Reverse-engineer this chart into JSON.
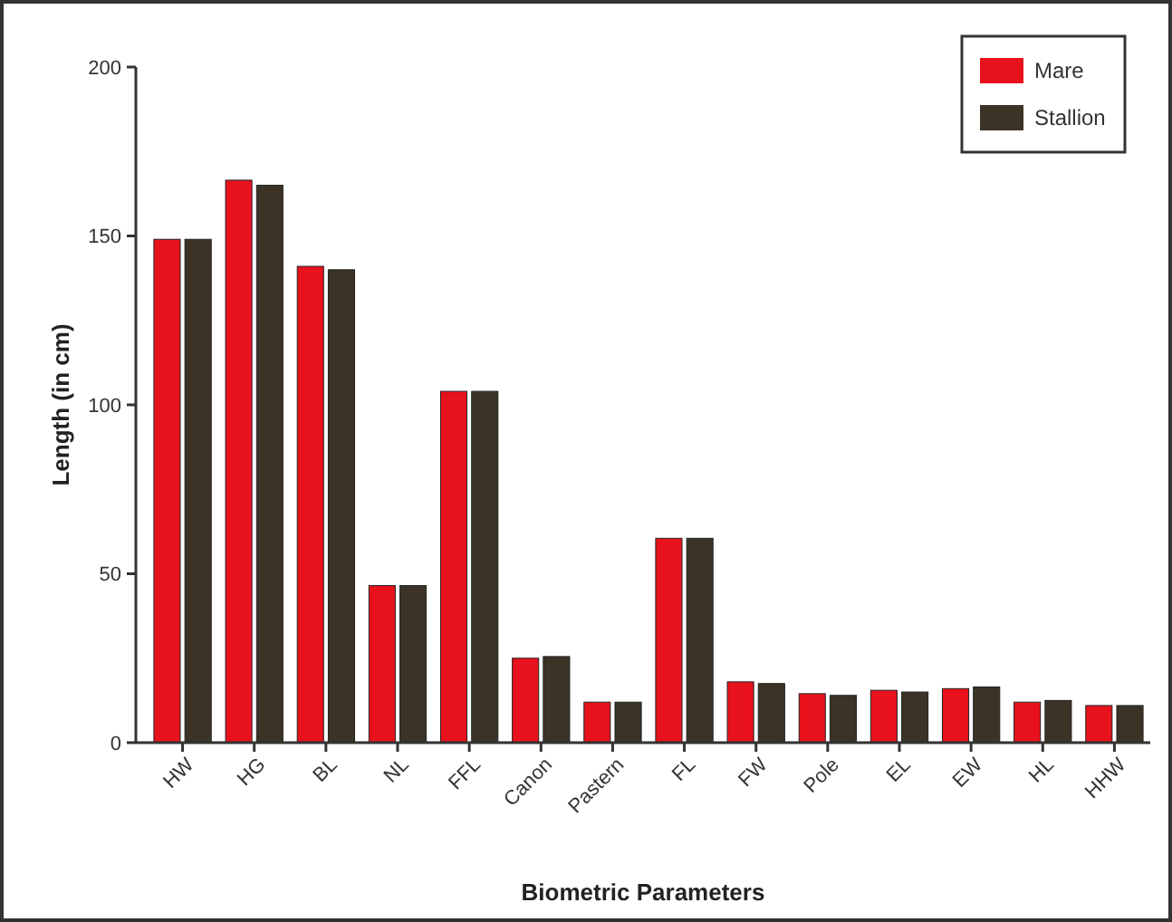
{
  "chart_data": {
    "type": "bar",
    "xlabel": "Biometric Parameters",
    "ylabel": "Length (in cm)",
    "categories": [
      "HW",
      "HG",
      "BL",
      "NL",
      "FFL",
      "Canon",
      "Pastern",
      "FL",
      "FW",
      "Pole",
      "EL",
      "EW",
      "HL",
      "HHW"
    ],
    "series": [
      {
        "name": "Mare",
        "color": "#e8121c",
        "values": [
          149,
          166.5,
          141,
          46.5,
          104,
          25,
          12,
          60.5,
          18,
          14.5,
          15.5,
          16,
          12,
          11
        ]
      },
      {
        "name": "Stallion",
        "color": "#3a3326",
        "values": [
          149,
          165,
          140,
          46.5,
          104,
          25.5,
          12,
          60.5,
          17.5,
          14,
          15,
          16.5,
          12.5,
          11
        ]
      }
    ],
    "ylim": [
      0,
      200
    ],
    "yticks": [
      0,
      50,
      100,
      150,
      200
    ],
    "grid": false,
    "legend": "top right"
  }
}
